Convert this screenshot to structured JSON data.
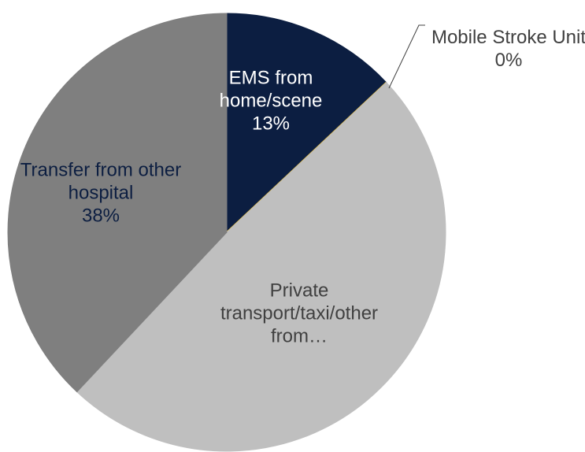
{
  "chart_data": {
    "type": "pie",
    "categories": [
      "EMS from home/scene",
      "Mobile Stroke Unit",
      "Private transport/taxi/other from…",
      "Transfer from other hospital"
    ],
    "values": [
      13,
      0,
      49,
      38
    ],
    "value_labels": [
      "13%",
      "0%",
      null,
      "38%"
    ],
    "colors": [
      "#0c1e41",
      "#f2c12e",
      "#bfbfbf",
      "#7f7f7f"
    ]
  }
}
